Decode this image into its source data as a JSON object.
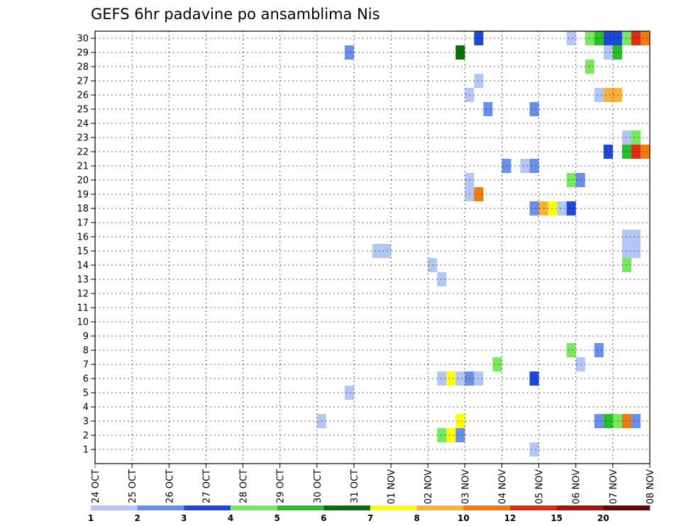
{
  "chart_data": {
    "type": "heatmap",
    "title": "GEFS 6hr padavine po ansamblima Nis",
    "xlabel": "",
    "ylabel": "",
    "x_tick_labels": [
      "24 OCT",
      "25 OCT",
      "26 OCT",
      "27 OCT",
      "28 OCT",
      "29 OCT",
      "30 OCT",
      "31 OCT",
      "01 NOV",
      "02 NOV",
      "03 NOV",
      "04 NOV",
      "05 NOV",
      "06 NOV",
      "07 NOV",
      "08 NOV"
    ],
    "y_tick_labels": [
      "1",
      "2",
      "3",
      "4",
      "5",
      "6",
      "7",
      "8",
      "9",
      "10",
      "11",
      "12",
      "13",
      "14",
      "15",
      "16",
      "17",
      "18",
      "19",
      "20",
      "21",
      "22",
      "23",
      "24",
      "25",
      "26",
      "27",
      "28",
      "29",
      "30"
    ],
    "xlim": [
      0,
      60
    ],
    "ylim": [
      0.5,
      30.5
    ],
    "x_unit": "6-hour steps from 24 OCT 00Z",
    "grid": true,
    "colorbar": {
      "tick_labels": [
        "1",
        "2",
        "3",
        "4",
        "5",
        "6",
        "7",
        "8",
        "10",
        "12",
        "15",
        "20"
      ],
      "colors": [
        "#b3c6f5",
        "#6a8fe8",
        "#1e48d8",
        "#76ea5c",
        "#28be28",
        "#0a6e0a",
        "#ffff00",
        "#f6b23a",
        "#f07c0c",
        "#dc2e10",
        "#a81410",
        "#640808"
      ]
    },
    "legend_position": "bottom",
    "cells": [
      {
        "t": 41,
        "m": 30,
        "c": 2
      },
      {
        "t": 51,
        "m": 30,
        "c": 0
      },
      {
        "t": 53,
        "m": 30,
        "c": 3
      },
      {
        "t": 54,
        "m": 30,
        "c": 4
      },
      {
        "t": 55,
        "m": 30,
        "c": 2
      },
      {
        "t": 56,
        "m": 30,
        "c": 2
      },
      {
        "t": 57,
        "m": 30,
        "c": 3
      },
      {
        "t": 58,
        "m": 30,
        "c": 9
      },
      {
        "t": 59,
        "m": 30,
        "c": 8
      },
      {
        "t": 27,
        "m": 29,
        "c": 1
      },
      {
        "t": 39,
        "m": 29,
        "c": 5
      },
      {
        "t": 55,
        "m": 29,
        "c": 0
      },
      {
        "t": 56,
        "m": 29,
        "c": 4
      },
      {
        "t": 53,
        "m": 28,
        "c": 3
      },
      {
        "t": 41,
        "m": 27,
        "c": 0
      },
      {
        "t": 40,
        "m": 26,
        "c": 0
      },
      {
        "t": 54,
        "m": 26,
        "c": 0
      },
      {
        "t": 55,
        "m": 26,
        "c": 7
      },
      {
        "t": 56,
        "m": 26,
        "c": 7
      },
      {
        "t": 42,
        "m": 25,
        "c": 1
      },
      {
        "t": 47,
        "m": 25,
        "c": 1
      },
      {
        "t": 57,
        "m": 23,
        "c": 0
      },
      {
        "t": 58,
        "m": 23,
        "c": 3
      },
      {
        "t": 55,
        "m": 22,
        "c": 2
      },
      {
        "t": 57,
        "m": 22,
        "c": 4
      },
      {
        "t": 58,
        "m": 22,
        "c": 9
      },
      {
        "t": 59,
        "m": 22,
        "c": 8
      },
      {
        "t": 44,
        "m": 21,
        "c": 1
      },
      {
        "t": 46,
        "m": 21,
        "c": 0
      },
      {
        "t": 47,
        "m": 21,
        "c": 1
      },
      {
        "t": 40,
        "m": 20,
        "c": 0
      },
      {
        "t": 51,
        "m": 20,
        "c": 3
      },
      {
        "t": 52,
        "m": 20,
        "c": 1
      },
      {
        "t": 40,
        "m": 19,
        "c": 0
      },
      {
        "t": 41,
        "m": 19,
        "c": 8
      },
      {
        "t": 47,
        "m": 18,
        "c": 1
      },
      {
        "t": 48,
        "m": 18,
        "c": 7
      },
      {
        "t": 49,
        "m": 18,
        "c": 6
      },
      {
        "t": 50,
        "m": 18,
        "c": 0
      },
      {
        "t": 51,
        "m": 18,
        "c": 2
      },
      {
        "t": 30,
        "m": 15,
        "c": 0
      },
      {
        "t": 31,
        "m": 15,
        "c": 0
      },
      {
        "t": 57,
        "m": 15,
        "c": 0
      },
      {
        "t": 58,
        "m": 15,
        "c": 0
      },
      {
        "t": 57,
        "m": 16,
        "c": 0
      },
      {
        "t": 58,
        "m": 16,
        "c": 0
      },
      {
        "t": 36,
        "m": 14,
        "c": 0
      },
      {
        "t": 57,
        "m": 14,
        "c": 3
      },
      {
        "t": 37,
        "m": 13,
        "c": 0
      },
      {
        "t": 51,
        "m": 8,
        "c": 3
      },
      {
        "t": 54,
        "m": 8,
        "c": 1
      },
      {
        "t": 43,
        "m": 7,
        "c": 3
      },
      {
        "t": 52,
        "m": 7,
        "c": 0
      },
      {
        "t": 37,
        "m": 6,
        "c": 0
      },
      {
        "t": 38,
        "m": 6,
        "c": 6
      },
      {
        "t": 39,
        "m": 6,
        "c": 0
      },
      {
        "t": 40,
        "m": 6,
        "c": 1
      },
      {
        "t": 41,
        "m": 6,
        "c": 0
      },
      {
        "t": 47,
        "m": 6,
        "c": 2
      },
      {
        "t": 27,
        "m": 5,
        "c": 0
      },
      {
        "t": 24,
        "m": 3,
        "c": 0
      },
      {
        "t": 39,
        "m": 3,
        "c": 6
      },
      {
        "t": 54,
        "m": 3,
        "c": 1
      },
      {
        "t": 55,
        "m": 3,
        "c": 4
      },
      {
        "t": 56,
        "m": 3,
        "c": 3
      },
      {
        "t": 57,
        "m": 3,
        "c": 8
      },
      {
        "t": 58,
        "m": 3,
        "c": 1
      },
      {
        "t": 37,
        "m": 2,
        "c": 3
      },
      {
        "t": 38,
        "m": 2,
        "c": 6
      },
      {
        "t": 39,
        "m": 2,
        "c": 1
      },
      {
        "t": 47,
        "m": 1,
        "c": 0
      }
    ]
  }
}
